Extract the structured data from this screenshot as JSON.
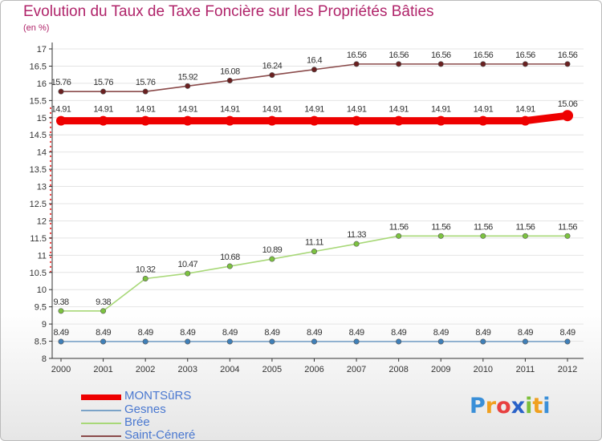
{
  "title": "Evolution du Taux de Taxe Foncière sur les Propriétés Bâties",
  "subtitle": "(en %)",
  "logo": {
    "letters": [
      "P",
      "r",
      "o",
      "x",
      "i",
      "t",
      "i"
    ],
    "colors": [
      "#3a8fd8",
      "#f0a020",
      "#e84040",
      "#2a62c8",
      "#7cbf3a",
      "#f0a020",
      "#3a8fd8"
    ]
  },
  "chart_data": {
    "type": "line",
    "title": "Evolution du Taux de Taxe Foncière sur les Propriétés Bâties",
    "ylabel": "(en %)",
    "xlabel": "",
    "x": [
      "2000",
      "2001",
      "2002",
      "2003",
      "2004",
      "2005",
      "2006",
      "2007",
      "2008",
      "2009",
      "2010",
      "2011",
      "2012"
    ],
    "ylim": [
      8,
      17
    ],
    "yticks": [
      "8",
      "8.5",
      "9",
      "9.5",
      "10",
      "10.5",
      "11",
      "11.5",
      "12",
      "12.5",
      "13",
      "13.5",
      "14",
      "14.5",
      "15",
      "15.5",
      "16",
      "16.5",
      "17"
    ],
    "series": [
      {
        "name": "MONTSûRS",
        "color": "#ee0000",
        "marker": "#ee0000",
        "values": [
          14.91,
          14.91,
          14.91,
          14.91,
          14.91,
          14.91,
          14.91,
          14.91,
          14.91,
          14.91,
          14.91,
          14.91,
          15.06
        ],
        "labels": [
          "14.91",
          "14.91",
          "14.91",
          "14.91",
          "14.91",
          "14.91",
          "14.91",
          "14.91",
          "14.91",
          "14.91",
          "14.91",
          "14.91",
          "15.06"
        ]
      },
      {
        "name": "Gesnes",
        "color": "#7ba3c8",
        "marker": "#3f7fb8",
        "values": [
          8.49,
          8.49,
          8.49,
          8.49,
          8.49,
          8.49,
          8.49,
          8.49,
          8.49,
          8.49,
          8.49,
          8.49,
          8.49
        ],
        "labels": [
          "8.49",
          "8.49",
          "8.49",
          "8.49",
          "8.49",
          "8.49",
          "8.49",
          "8.49",
          "8.49",
          "8.49",
          "8.49",
          "8.49",
          "8.49"
        ]
      },
      {
        "name": "Brée",
        "color": "#a8d878",
        "marker": "#7cc240",
        "values": [
          9.38,
          9.38,
          10.32,
          10.47,
          10.68,
          10.89,
          11.11,
          11.33,
          11.56,
          11.56,
          11.56,
          11.56,
          11.56
        ],
        "labels": [
          "9.38",
          "9.38",
          "10.32",
          "10.47",
          "10.68",
          "10.89",
          "11.11",
          "11.33",
          "11.56",
          "11.56",
          "11.56",
          "11.56",
          "11.56"
        ]
      },
      {
        "name": "Saint-Céneré",
        "color": "#8a4a4a",
        "marker": "#6a2020",
        "values": [
          15.76,
          15.76,
          15.76,
          15.92,
          16.08,
          16.24,
          16.4,
          16.56,
          16.56,
          16.56,
          16.56,
          16.56,
          16.56
        ],
        "labels": [
          "15.76",
          "15.76",
          "15.76",
          "15.92",
          "16.08",
          "16.24",
          "16.4",
          "16.56",
          "16.56",
          "16.56",
          "16.56",
          "16.56",
          "16.56"
        ]
      }
    ]
  }
}
